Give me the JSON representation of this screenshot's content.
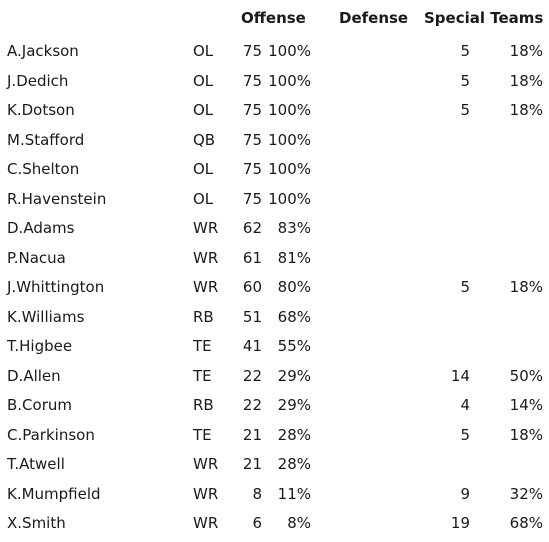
{
  "headers": {
    "offense": "Offense",
    "defense": "Defense",
    "special_teams": "Special Teams"
  },
  "players": [
    {
      "name": "A.Jackson",
      "pos": "OL",
      "off_snaps": "75",
      "off_pct": "100%",
      "def_snaps": "",
      "def_pct": "",
      "st_snaps": "5",
      "st_pct": "18%"
    },
    {
      "name": "J.Dedich",
      "pos": "OL",
      "off_snaps": "75",
      "off_pct": "100%",
      "def_snaps": "",
      "def_pct": "",
      "st_snaps": "5",
      "st_pct": "18%"
    },
    {
      "name": "K.Dotson",
      "pos": "OL",
      "off_snaps": "75",
      "off_pct": "100%",
      "def_snaps": "",
      "def_pct": "",
      "st_snaps": "5",
      "st_pct": "18%"
    },
    {
      "name": "M.Stafford",
      "pos": "QB",
      "off_snaps": "75",
      "off_pct": "100%",
      "def_snaps": "",
      "def_pct": "",
      "st_snaps": "",
      "st_pct": ""
    },
    {
      "name": "C.Shelton",
      "pos": "OL",
      "off_snaps": "75",
      "off_pct": "100%",
      "def_snaps": "",
      "def_pct": "",
      "st_snaps": "",
      "st_pct": ""
    },
    {
      "name": "R.Havenstein",
      "pos": "OL",
      "off_snaps": "75",
      "off_pct": "100%",
      "def_snaps": "",
      "def_pct": "",
      "st_snaps": "",
      "st_pct": ""
    },
    {
      "name": "D.Adams",
      "pos": "WR",
      "off_snaps": "62",
      "off_pct": "83%",
      "def_snaps": "",
      "def_pct": "",
      "st_snaps": "",
      "st_pct": ""
    },
    {
      "name": "P.Nacua",
      "pos": "WR",
      "off_snaps": "61",
      "off_pct": "81%",
      "def_snaps": "",
      "def_pct": "",
      "st_snaps": "",
      "st_pct": ""
    },
    {
      "name": "J.Whittington",
      "pos": "WR",
      "off_snaps": "60",
      "off_pct": "80%",
      "def_snaps": "",
      "def_pct": "",
      "st_snaps": "5",
      "st_pct": "18%"
    },
    {
      "name": "K.Williams",
      "pos": "RB",
      "off_snaps": "51",
      "off_pct": "68%",
      "def_snaps": "",
      "def_pct": "",
      "st_snaps": "",
      "st_pct": ""
    },
    {
      "name": "T.Higbee",
      "pos": "TE",
      "off_snaps": "41",
      "off_pct": "55%",
      "def_snaps": "",
      "def_pct": "",
      "st_snaps": "",
      "st_pct": ""
    },
    {
      "name": "D.Allen",
      "pos": "TE",
      "off_snaps": "22",
      "off_pct": "29%",
      "def_snaps": "",
      "def_pct": "",
      "st_snaps": "14",
      "st_pct": "50%"
    },
    {
      "name": "B.Corum",
      "pos": "RB",
      "off_snaps": "22",
      "off_pct": "29%",
      "def_snaps": "",
      "def_pct": "",
      "st_snaps": "4",
      "st_pct": "14%"
    },
    {
      "name": "C.Parkinson",
      "pos": "TE",
      "off_snaps": "21",
      "off_pct": "28%",
      "def_snaps": "",
      "def_pct": "",
      "st_snaps": "5",
      "st_pct": "18%"
    },
    {
      "name": "T.Atwell",
      "pos": "WR",
      "off_snaps": "21",
      "off_pct": "28%",
      "def_snaps": "",
      "def_pct": "",
      "st_snaps": "",
      "st_pct": ""
    },
    {
      "name": "K.Mumpfield",
      "pos": "WR",
      "off_snaps": "8",
      "off_pct": "11%",
      "def_snaps": "",
      "def_pct": "",
      "st_snaps": "9",
      "st_pct": "32%"
    },
    {
      "name": "X.Smith",
      "pos": "WR",
      "off_snaps": "6",
      "off_pct": "8%",
      "def_snaps": "",
      "def_pct": "",
      "st_snaps": "19",
      "st_pct": "68%"
    }
  ]
}
